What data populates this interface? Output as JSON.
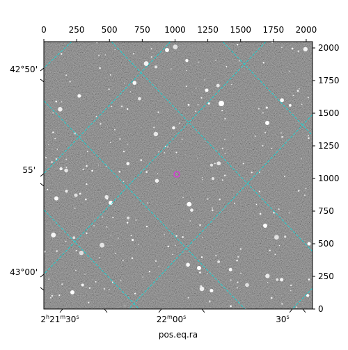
{
  "chart_data": {
    "type": "image",
    "xlabel": "pos.eq.ra",
    "xlim": [
      0,
      2048
    ],
    "xticks": [
      0,
      250,
      500,
      750,
      1000,
      1250,
      1500,
      1750,
      2000
    ],
    "ylim": [
      0,
      2048
    ],
    "yticks": [
      0,
      250,
      500,
      750,
      1000,
      1250,
      1500,
      1750,
      2000
    ],
    "world_y_labels": [
      "42°50'",
      "55'",
      "43°00'"
    ],
    "world_x_labels": [
      "2h21m30s",
      "22m00s",
      "30s"
    ]
  }
}
